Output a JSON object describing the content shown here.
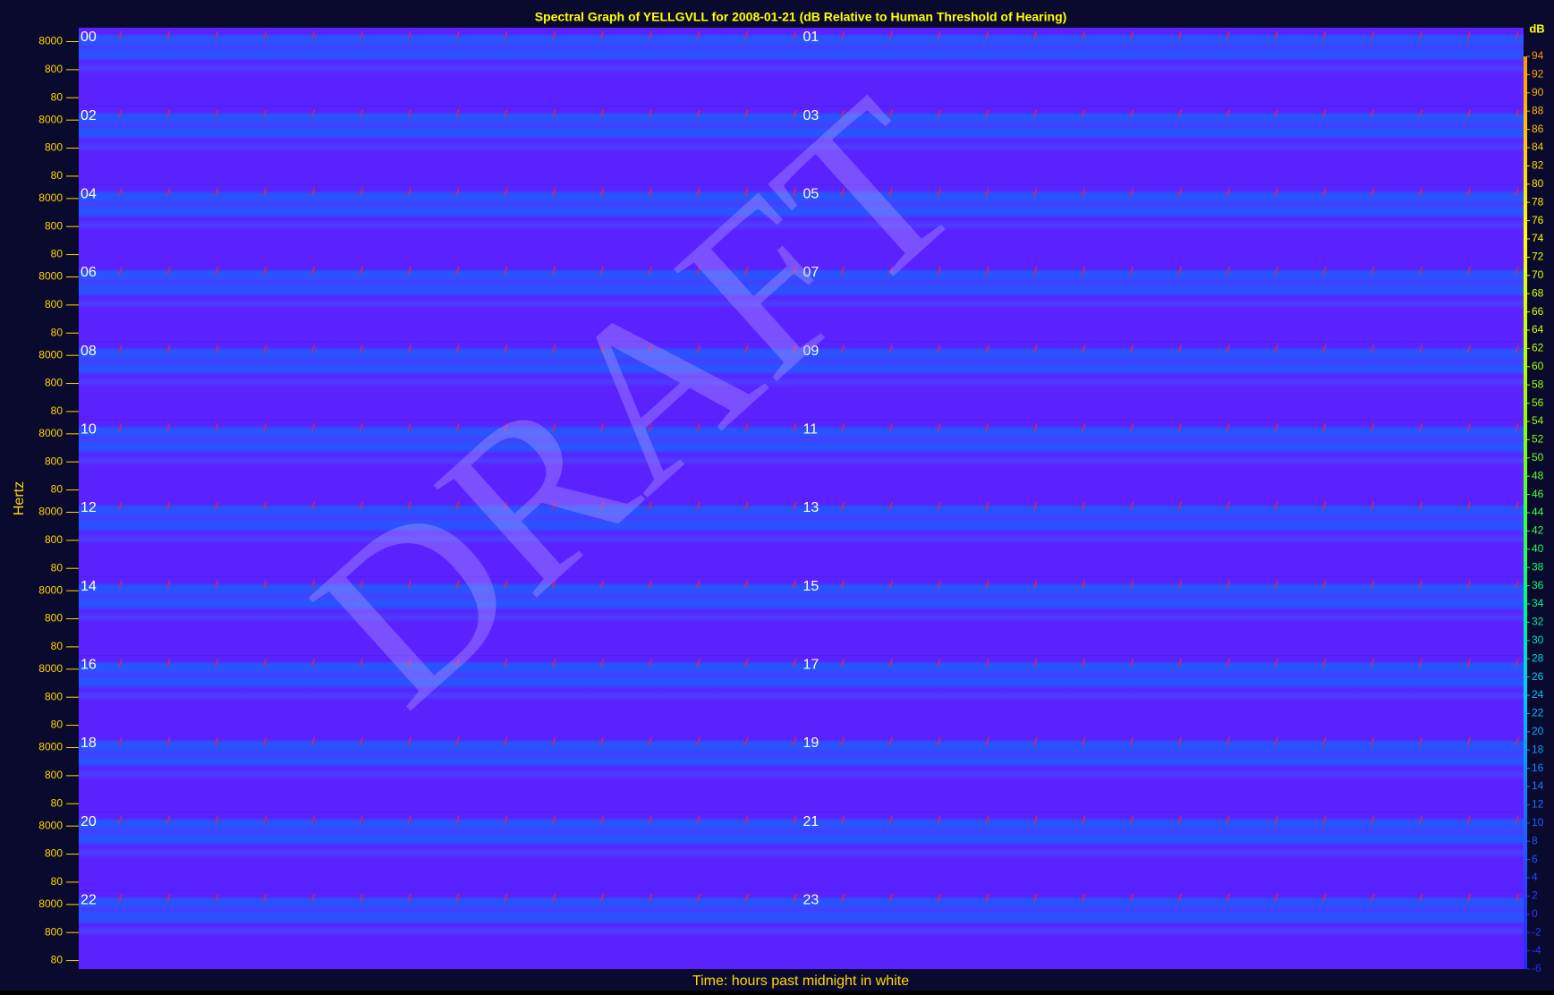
{
  "chart_data": {
    "type": "spectrogram",
    "title": "Spectral Graph of YELLGVLL for 2008-01-21 (dB Relative to Human Threshold of Hearing)",
    "ylabel": "Hertz",
    "xlabel": "Time: hours past midnight in white",
    "watermark": "DRAFT",
    "hours": [
      "00",
      "01",
      "02",
      "03",
      "04",
      "05",
      "06",
      "07",
      "08",
      "09",
      "10",
      "11",
      "12",
      "13",
      "14",
      "15",
      "16",
      "17",
      "18",
      "19",
      "20",
      "21",
      "22",
      "23"
    ],
    "log_y": true,
    "ylim": [
      40,
      25000
    ],
    "yticks": [
      80,
      800,
      8000
    ],
    "colorbar": {
      "label": "dB",
      "lim": [
        -6,
        94
      ],
      "ticks": [
        94,
        92,
        90,
        88,
        86,
        84,
        82,
        80,
        78,
        76,
        74,
        72,
        70,
        68,
        66,
        64,
        62,
        60,
        58,
        56,
        54,
        52,
        50,
        48,
        46,
        44,
        42,
        40,
        38,
        36,
        34,
        32,
        30,
        28,
        26,
        24,
        22,
        20,
        18,
        16,
        14,
        12,
        10,
        8,
        6,
        4,
        2,
        0,
        -2,
        -4,
        -6
      ]
    },
    "colors": {
      "background": "#5a22ff",
      "band": "#2a52ff"
    }
  }
}
